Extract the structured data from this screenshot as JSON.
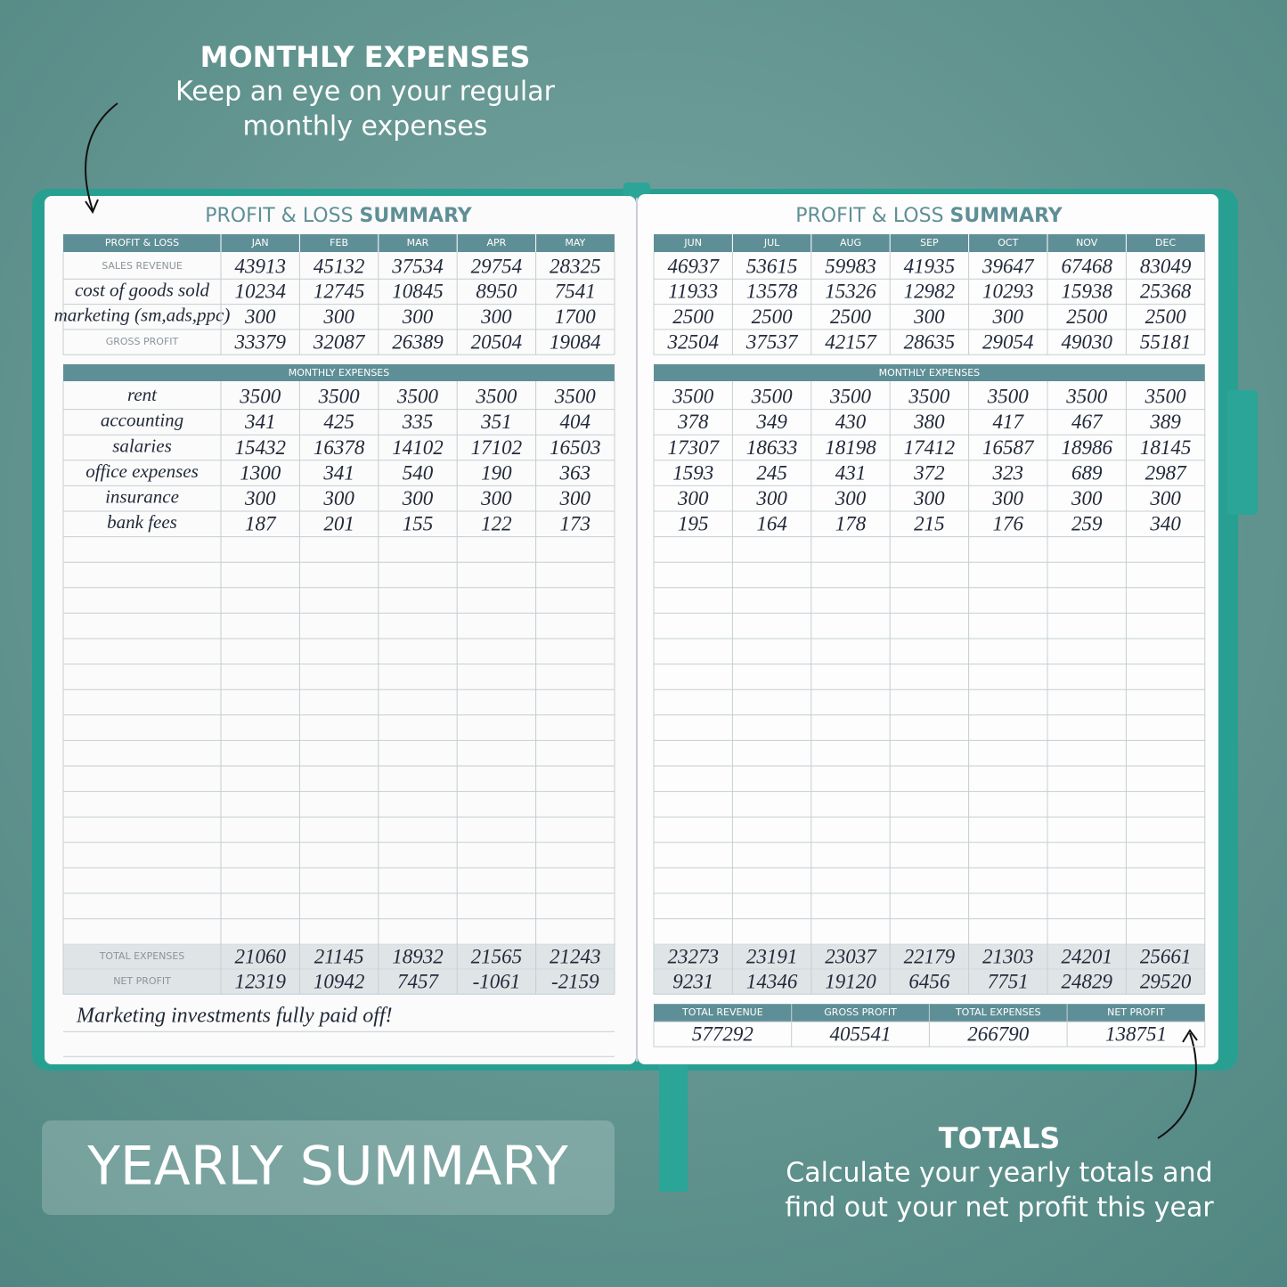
{
  "callout_top": {
    "title": "MONTHLY EXPENSES",
    "lines": [
      "Keep an eye on your regular",
      "monthly expenses"
    ]
  },
  "left_page": {
    "title_light": "PROFIT & LOSS",
    "title_bold": "SUMMARY",
    "corner": "PROFIT & LOSS",
    "months": [
      "JAN",
      "FEB",
      "MAR",
      "APR",
      "MAY"
    ],
    "rows": [
      {
        "label": "SALES REVENUE",
        "values": [
          43913,
          45132,
          37534,
          29754,
          28325
        ]
      },
      {
        "label": "cost of goods sold",
        "values": [
          10234,
          12745,
          10845,
          8950,
          7541
        ]
      },
      {
        "label": "marketing (sm,ads,ppc)",
        "values": [
          300,
          300,
          300,
          300,
          1700
        ]
      },
      {
        "label": "GROSS PROFIT",
        "values": [
          33379,
          32087,
          26389,
          20504,
          19084
        ]
      }
    ],
    "expenses_title": "MONTHLY EXPENSES",
    "expenses": [
      {
        "label": "rent",
        "values": [
          3500,
          3500,
          3500,
          3500,
          3500
        ]
      },
      {
        "label": "accounting",
        "values": [
          341,
          425,
          335,
          351,
          404
        ]
      },
      {
        "label": "salaries",
        "values": [
          15432,
          16378,
          14102,
          17102,
          16503
        ]
      },
      {
        "label": "office expenses",
        "values": [
          1300,
          341,
          540,
          190,
          363
        ]
      },
      {
        "label": "insurance",
        "values": [
          300,
          300,
          300,
          300,
          300
        ]
      },
      {
        "label": "bank fees",
        "values": [
          187,
          201,
          155,
          122,
          173
        ]
      }
    ],
    "total_expenses": {
      "label": "TOTAL EXPENSES",
      "values": [
        21060,
        21145,
        18932,
        21565,
        21243
      ]
    },
    "net_profit": {
      "label": "NET PROFIT",
      "values": [
        12319,
        10942,
        7457,
        -1061,
        -2159
      ]
    },
    "note": "Marketing investments fully paid off!"
  },
  "right_page": {
    "title_light": "PROFIT & LOSS",
    "title_bold": "SUMMARY",
    "months": [
      "JUN",
      "JUL",
      "AUG",
      "SEP",
      "OCT",
      "NOV",
      "DEC"
    ],
    "rows": [
      {
        "values": [
          46937,
          53615,
          59983,
          41935,
          39647,
          67468,
          83049
        ]
      },
      {
        "values": [
          11933,
          13578,
          15326,
          12982,
          10293,
          15938,
          25368
        ]
      },
      {
        "values": [
          2500,
          2500,
          2500,
          300,
          300,
          2500,
          2500
        ]
      },
      {
        "values": [
          32504,
          37537,
          42157,
          28635,
          29054,
          49030,
          55181
        ]
      }
    ],
    "expenses_title": "MONTHLY EXPENSES",
    "expenses": [
      {
        "values": [
          3500,
          3500,
          3500,
          3500,
          3500,
          3500,
          3500
        ]
      },
      {
        "values": [
          378,
          349,
          430,
          380,
          417,
          467,
          389
        ]
      },
      {
        "values": [
          17307,
          18633,
          18198,
          17412,
          16587,
          18986,
          18145
        ]
      },
      {
        "values": [
          1593,
          245,
          431,
          372,
          323,
          689,
          2987
        ]
      },
      {
        "values": [
          300,
          300,
          300,
          300,
          300,
          300,
          300
        ]
      },
      {
        "values": [
          195,
          164,
          178,
          215,
          176,
          259,
          340
        ]
      }
    ],
    "total_expenses": {
      "values": [
        23273,
        23191,
        23037,
        22179,
        21303,
        24201,
        25661
      ]
    },
    "net_profit": {
      "values": [
        9231,
        14346,
        19120,
        6456,
        7751,
        24829,
        29520
      ]
    },
    "totals": {
      "labels": [
        "TOTAL REVENUE",
        "GROSS PROFIT",
        "TOTAL EXPENSES",
        "NET PROFIT"
      ],
      "values": [
        577292,
        405541,
        266790,
        138751
      ]
    }
  },
  "badge": "YEARLY SUMMARY",
  "callout_bottom": {
    "title": "TOTALS",
    "lines": [
      "Calculate your yearly totals and",
      "find out your net profit this year"
    ]
  }
}
